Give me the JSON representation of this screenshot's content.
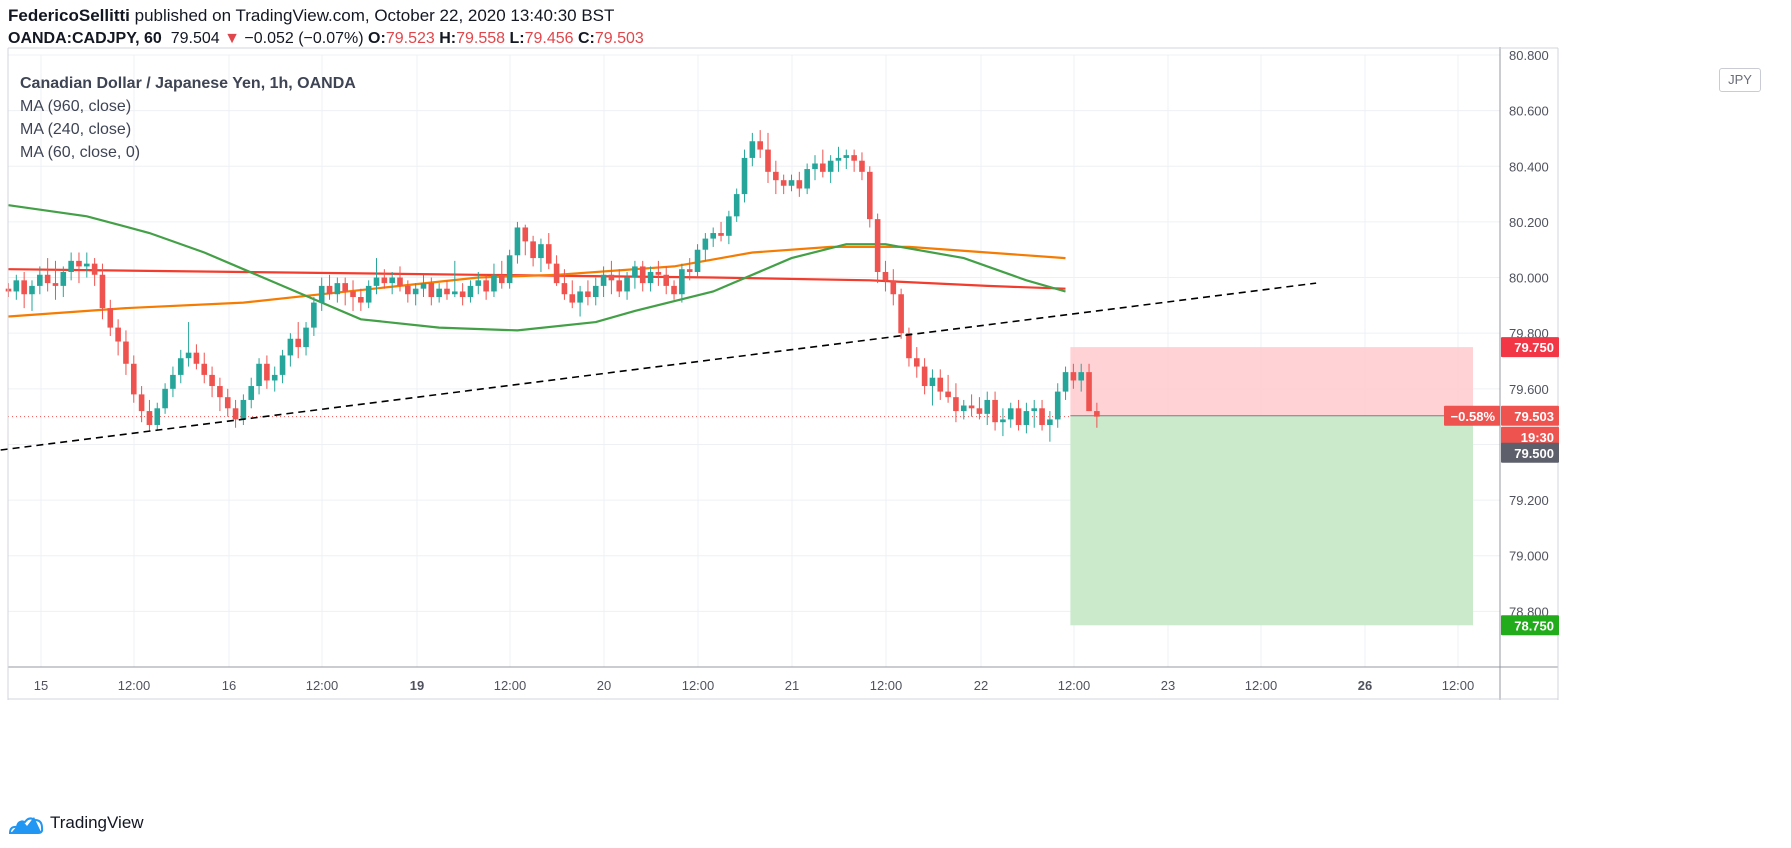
{
  "header": {
    "author": "FedericoSellitti",
    "published": "published on TradingView.com, October 22, 2020 13:40:30 BST",
    "symbol": "OANDA:CADJPY, 60",
    "last": "79.504",
    "change_arrow": "▼",
    "change": "−0.052 (−0.07%)",
    "open_label": "O:",
    "open": "79.523",
    "high_label": "H:",
    "high": "79.558",
    "low_label": "L:",
    "low": "79.456",
    "close_label": "C:",
    "close": "79.503"
  },
  "legend": {
    "title": "Canadian Dollar / Japanese Yen, 1h, OANDA",
    "ma1": "MA (960, close)",
    "ma2": "MA (240, close)",
    "ma3": "MA (60, close, 0)"
  },
  "currency": "JPY",
  "brand": "TradingView",
  "colors": {
    "up": "#26a69a",
    "down": "#ef5350",
    "ma960": "#f23c2d",
    "ma240": "#f57c00",
    "ma60": "#43a047",
    "stop_zone": "#ffcdd0",
    "target_zone": "#c8e8c8",
    "trendline": "#000000"
  },
  "chart_data": {
    "type": "candlestick",
    "symbol": "OANDA:CADJPY",
    "timeframe": "1h",
    "ylim": [
      78.6,
      80.8
    ],
    "y_ticks": [
      "80.800",
      "80.600",
      "80.400",
      "80.200",
      "80.000",
      "79.800",
      "79.600",
      "79.400",
      "79.200",
      "79.000",
      "78.800"
    ],
    "x_ticks": [
      "15",
      "12:00",
      "16",
      "12:00",
      "19",
      "12:00",
      "20",
      "12:00",
      "21",
      "12:00",
      "22",
      "12:00",
      "23",
      "12:00",
      "26",
      "12:00"
    ],
    "bold_x_ticks": [
      "19",
      "26"
    ],
    "candles": [
      [
        79.96,
        79.98,
        79.93,
        79.95
      ],
      [
        79.95,
        80.01,
        79.92,
        79.99
      ],
      [
        79.99,
        80.02,
        79.89,
        79.94
      ],
      [
        79.94,
        79.99,
        79.88,
        79.97
      ],
      [
        79.97,
        80.04,
        79.94,
        80.01
      ],
      [
        80.01,
        80.07,
        79.95,
        79.98
      ],
      [
        79.98,
        80.06,
        79.92,
        79.97
      ],
      [
        79.97,
        80.04,
        79.93,
        80.02
      ],
      [
        80.02,
        80.09,
        79.99,
        80.06
      ],
      [
        80.06,
        80.09,
        79.98,
        80.04
      ],
      [
        80.04,
        80.09,
        80.0,
        80.05
      ],
      [
        80.05,
        80.07,
        79.97,
        80.01
      ],
      [
        80.01,
        80.05,
        79.85,
        79.89
      ],
      [
        79.89,
        79.92,
        79.79,
        79.82
      ],
      [
        79.82,
        79.85,
        79.72,
        79.77
      ],
      [
        79.77,
        79.81,
        79.65,
        79.69
      ],
      [
        79.69,
        79.72,
        79.55,
        79.58
      ],
      [
        79.58,
        79.61,
        79.48,
        79.52
      ],
      [
        79.52,
        79.56,
        79.45,
        79.47
      ],
      [
        79.47,
        79.55,
        79.45,
        79.53
      ],
      [
        79.53,
        79.62,
        79.51,
        79.6
      ],
      [
        79.6,
        79.68,
        79.57,
        79.65
      ],
      [
        79.65,
        79.74,
        79.62,
        79.71
      ],
      [
        79.71,
        79.84,
        79.68,
        79.73
      ],
      [
        79.73,
        79.76,
        79.67,
        79.69
      ],
      [
        79.69,
        79.73,
        79.62,
        79.65
      ],
      [
        79.65,
        79.68,
        79.57,
        79.61
      ],
      [
        79.61,
        79.64,
        79.52,
        79.57
      ],
      [
        79.57,
        79.6,
        79.5,
        79.53
      ],
      [
        79.53,
        79.56,
        79.46,
        79.49
      ],
      [
        79.49,
        79.58,
        79.47,
        79.56
      ],
      [
        79.56,
        79.64,
        79.53,
        79.61
      ],
      [
        79.61,
        79.71,
        79.58,
        79.69
      ],
      [
        79.69,
        79.72,
        79.6,
        79.63
      ],
      [
        79.63,
        79.68,
        79.59,
        79.65
      ],
      [
        79.65,
        79.74,
        79.62,
        79.72
      ],
      [
        79.72,
        79.8,
        79.68,
        79.78
      ],
      [
        79.78,
        79.84,
        79.71,
        79.75
      ],
      [
        79.75,
        79.84,
        79.72,
        79.82
      ],
      [
        79.82,
        79.93,
        79.79,
        79.91
      ],
      [
        79.91,
        80.0,
        79.88,
        79.97
      ],
      [
        79.97,
        80.01,
        79.92,
        79.94
      ],
      [
        79.94,
        80.0,
        79.91,
        79.98
      ],
      [
        79.98,
        80.0,
        79.9,
        79.95
      ],
      [
        79.95,
        79.99,
        79.88,
        79.93
      ],
      [
        79.93,
        79.96,
        79.88,
        79.91
      ],
      [
        79.91,
        79.99,
        79.89,
        79.97
      ],
      [
        79.97,
        80.07,
        79.94,
        80.0
      ],
      [
        80.0,
        80.03,
        79.96,
        79.98
      ],
      [
        79.98,
        80.02,
        79.94,
        80.0
      ],
      [
        80.0,
        80.04,
        79.95,
        79.97
      ],
      [
        79.97,
        79.99,
        79.91,
        79.94
      ],
      [
        79.94,
        79.98,
        79.9,
        79.96
      ],
      [
        79.96,
        80.01,
        79.93,
        79.98
      ],
      [
        79.98,
        80.0,
        79.9,
        79.93
      ],
      [
        79.93,
        79.98,
        79.91,
        79.96
      ],
      [
        79.96,
        79.99,
        79.92,
        79.94
      ],
      [
        79.94,
        80.06,
        79.93,
        79.95
      ],
      [
        79.95,
        79.98,
        79.9,
        79.93
      ],
      [
        79.93,
        79.99,
        79.91,
        79.97
      ],
      [
        79.97,
        80.02,
        79.94,
        79.99
      ],
      [
        79.99,
        80.01,
        79.92,
        79.95
      ],
      [
        79.95,
        80.05,
        79.93,
        80.01
      ],
      [
        80.01,
        80.06,
        79.96,
        79.98
      ],
      [
        79.98,
        80.1,
        79.96,
        80.08
      ],
      [
        80.08,
        80.2,
        80.05,
        80.18
      ],
      [
        80.18,
        80.19,
        80.08,
        80.13
      ],
      [
        80.13,
        80.15,
        80.04,
        80.07
      ],
      [
        80.07,
        80.14,
        80.02,
        80.12
      ],
      [
        80.12,
        80.16,
        80.03,
        80.05
      ],
      [
        80.05,
        80.08,
        79.97,
        79.98
      ],
      [
        79.98,
        80.03,
        79.92,
        79.94
      ],
      [
        79.94,
        79.99,
        79.89,
        79.91
      ],
      [
        79.91,
        79.97,
        79.86,
        79.95
      ],
      [
        79.95,
        79.99,
        79.9,
        79.93
      ],
      [
        79.93,
        80.0,
        79.9,
        79.97
      ],
      [
        79.97,
        80.04,
        79.93,
        80.01
      ],
      [
        80.01,
        80.06,
        79.94,
        79.99
      ],
      [
        79.99,
        80.03,
        79.93,
        79.95
      ],
      [
        79.95,
        80.02,
        79.92,
        80.0
      ],
      [
        80.0,
        80.06,
        79.96,
        80.04
      ],
      [
        80.04,
        80.06,
        79.95,
        79.98
      ],
      [
        79.98,
        80.04,
        79.95,
        80.02
      ],
      [
        80.02,
        80.06,
        79.97,
        80.01
      ],
      [
        80.01,
        80.04,
        79.94,
        79.97
      ],
      [
        79.97,
        79.99,
        79.92,
        79.94
      ],
      [
        79.94,
        80.05,
        79.91,
        80.03
      ],
      [
        80.03,
        80.07,
        79.99,
        80.02
      ],
      [
        80.02,
        80.12,
        80.0,
        80.1
      ],
      [
        80.1,
        80.16,
        80.06,
        80.14
      ],
      [
        80.14,
        80.18,
        80.11,
        80.16
      ],
      [
        80.16,
        80.2,
        80.13,
        80.15
      ],
      [
        80.15,
        80.24,
        80.12,
        80.22
      ],
      [
        80.22,
        80.32,
        80.2,
        80.3
      ],
      [
        80.3,
        80.46,
        80.27,
        80.43
      ],
      [
        80.43,
        80.52,
        80.4,
        80.49
      ],
      [
        80.49,
        80.53,
        80.43,
        80.46
      ],
      [
        80.46,
        80.52,
        80.34,
        80.38
      ],
      [
        80.38,
        80.42,
        80.3,
        80.35
      ],
      [
        80.35,
        80.37,
        80.3,
        80.33
      ],
      [
        80.33,
        80.37,
        80.31,
        80.35
      ],
      [
        80.35,
        80.38,
        80.29,
        80.32
      ],
      [
        80.32,
        80.41,
        80.3,
        80.39
      ],
      [
        80.39,
        80.44,
        80.35,
        80.41
      ],
      [
        80.41,
        80.46,
        80.36,
        80.38
      ],
      [
        80.38,
        80.44,
        80.34,
        80.42
      ],
      [
        80.42,
        80.47,
        80.38,
        80.43
      ],
      [
        80.43,
        80.46,
        80.39,
        80.44
      ],
      [
        80.44,
        80.46,
        80.38,
        80.42
      ],
      [
        80.42,
        80.45,
        80.35,
        80.38
      ],
      [
        80.38,
        80.4,
        80.18,
        80.21
      ],
      [
        80.21,
        80.23,
        79.98,
        80.02
      ],
      [
        80.02,
        80.06,
        79.95,
        79.99
      ],
      [
        79.99,
        80.03,
        79.9,
        79.94
      ],
      [
        79.94,
        79.96,
        79.78,
        79.8
      ],
      [
        79.8,
        79.82,
        79.68,
        79.71
      ],
      [
        79.71,
        79.75,
        79.64,
        79.68
      ],
      [
        79.68,
        79.71,
        79.58,
        79.61
      ],
      [
        79.61,
        79.67,
        79.54,
        79.64
      ],
      [
        79.64,
        79.67,
        79.56,
        79.59
      ],
      [
        79.59,
        79.65,
        79.55,
        79.57
      ],
      [
        79.57,
        79.62,
        79.48,
        79.52
      ],
      [
        79.52,
        79.56,
        79.49,
        79.54
      ],
      [
        79.54,
        79.58,
        79.5,
        79.53
      ],
      [
        79.53,
        79.57,
        79.49,
        79.51
      ],
      [
        79.51,
        79.59,
        79.47,
        79.56
      ],
      [
        79.56,
        79.59,
        79.45,
        79.48
      ],
      [
        79.48,
        79.53,
        79.43,
        79.49
      ],
      [
        79.49,
        79.55,
        79.46,
        79.53
      ],
      [
        79.53,
        79.56,
        79.45,
        79.47
      ],
      [
        79.47,
        79.55,
        79.44,
        79.52
      ],
      [
        79.52,
        79.56,
        79.46,
        79.53
      ],
      [
        79.53,
        79.56,
        79.45,
        79.47
      ],
      [
        79.47,
        79.52,
        79.41,
        79.49
      ],
      [
        79.49,
        79.62,
        79.46,
        79.59
      ],
      [
        79.59,
        79.68,
        79.56,
        79.66
      ],
      [
        79.66,
        79.69,
        79.6,
        79.63
      ],
      [
        79.63,
        79.69,
        79.59,
        79.66
      ],
      [
        79.66,
        79.69,
        79.52,
        79.52
      ],
      [
        79.52,
        79.55,
        79.46,
        79.5
      ]
    ],
    "moving_averages": [
      {
        "name": "MA (960, close)",
        "color": "#f23c2d",
        "points": [
          [
            0,
            80.03
          ],
          [
            30,
            80.02
          ],
          [
            60,
            80.01
          ],
          [
            90,
            80.0
          ],
          [
            110,
            79.99
          ],
          [
            125,
            79.97
          ],
          [
            135,
            79.96
          ]
        ]
      },
      {
        "name": "MA (240, close)",
        "color": "#f57c00",
        "points": [
          [
            0,
            79.86
          ],
          [
            15,
            79.89
          ],
          [
            30,
            79.91
          ],
          [
            40,
            79.94
          ],
          [
            50,
            79.97
          ],
          [
            60,
            80.0
          ],
          [
            70,
            80.01
          ],
          [
            85,
            80.04
          ],
          [
            95,
            80.09
          ],
          [
            105,
            80.11
          ],
          [
            115,
            80.11
          ],
          [
            125,
            80.09
          ],
          [
            135,
            80.07
          ]
        ]
      },
      {
        "name": "MA (60, close, 0)",
        "color": "#43a047",
        "points": [
          [
            0,
            80.26
          ],
          [
            10,
            80.22
          ],
          [
            18,
            80.16
          ],
          [
            25,
            80.09
          ],
          [
            35,
            79.97
          ],
          [
            45,
            79.85
          ],
          [
            55,
            79.82
          ],
          [
            65,
            79.81
          ],
          [
            75,
            79.84
          ],
          [
            80,
            79.88
          ],
          [
            90,
            79.95
          ],
          [
            100,
            80.07
          ],
          [
            107,
            80.12
          ],
          [
            112,
            80.12
          ],
          [
            122,
            80.07
          ],
          [
            130,
            79.99
          ],
          [
            135,
            79.95
          ]
        ]
      }
    ],
    "trendline": {
      "style": "dashed",
      "points": [
        [
          -1,
          79.38
        ],
        [
          167,
          79.98
        ]
      ]
    },
    "position": {
      "type": "short",
      "entry": 79.503,
      "stop": 79.75,
      "target": 78.75,
      "start_index": 136,
      "end_index": 172
    },
    "price_labels": {
      "stop": "79.750",
      "current": "79.503",
      "current_change": "−0.58%",
      "countdown": "19:30",
      "crosshair": "79.500",
      "target": "78.750"
    }
  }
}
